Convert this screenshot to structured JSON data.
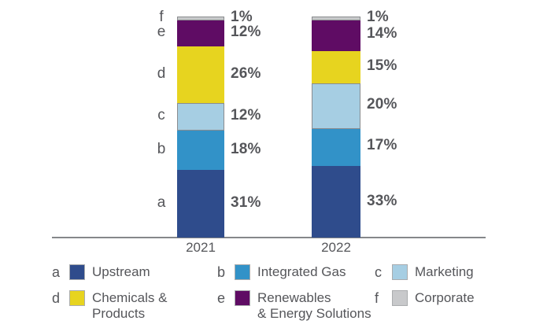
{
  "colors": {
    "text": "#55565A",
    "axis": "#85878A",
    "swatch_border": "#AAACAE",
    "light_segment_outline": "#8A8C8F"
  },
  "chart_data": {
    "type": "bar",
    "stacked": true,
    "orientation": "vertical",
    "unit": "%",
    "title": "",
    "xlabel": "",
    "ylabel": "",
    "ylim": [
      0,
      100
    ],
    "grid": false,
    "legend_position": "bottom",
    "categories": [
      "2021",
      "2022"
    ],
    "stack_order_bottom_to_top": [
      "a",
      "b",
      "c",
      "d",
      "e",
      "f"
    ],
    "series": [
      {
        "key": "a",
        "name": "Upstream",
        "color": "#2F4C8C",
        "values": [
          31,
          33
        ]
      },
      {
        "key": "b",
        "name": "Integrated Gas",
        "color": "#3292C8",
        "values": [
          18,
          17
        ]
      },
      {
        "key": "c",
        "name": "Marketing",
        "color": "#A6CEE3",
        "outline": "#8A8C8F",
        "values": [
          12,
          20
        ]
      },
      {
        "key": "d",
        "name": "Chemicals & Products",
        "color": "#E7D41F",
        "values": [
          26,
          15
        ]
      },
      {
        "key": "e",
        "name": "Renewables & Energy Solutions",
        "color": "#5F0C64",
        "values": [
          12,
          14
        ]
      },
      {
        "key": "f",
        "name": "Corporate",
        "color": "#C8C9CB",
        "outline": "#8A8C8F",
        "values": [
          1,
          1
        ]
      }
    ],
    "value_labels": {
      "2021": [
        "31%",
        "18%",
        "12%",
        "26%",
        "12%",
        "1%"
      ],
      "2022": [
        "33%",
        "17%",
        "20%",
        "15%",
        "14%",
        "1%"
      ]
    }
  },
  "legend": {
    "items": [
      {
        "letter": "a",
        "label_lines": [
          "Upstream"
        ],
        "color": "#2F4C8C",
        "col": 0,
        "row": 0
      },
      {
        "letter": "b",
        "label_lines": [
          "Integrated Gas"
        ],
        "color": "#3292C8",
        "col": 1,
        "row": 0
      },
      {
        "letter": "c",
        "label_lines": [
          "Marketing"
        ],
        "color": "#A6CEE3",
        "col": 2,
        "row": 0
      },
      {
        "letter": "d",
        "label_lines": [
          "Chemicals &",
          "Products"
        ],
        "color": "#E7D41F",
        "col": 0,
        "row": 1
      },
      {
        "letter": "e",
        "label_lines": [
          "Renewables",
          "& Energy Solutions"
        ],
        "color": "#5F0C64",
        "col": 1,
        "row": 1
      },
      {
        "letter": "f",
        "label_lines": [
          "Corporate"
        ],
        "color": "#C8C9CB",
        "col": 2,
        "row": 1
      }
    ]
  }
}
